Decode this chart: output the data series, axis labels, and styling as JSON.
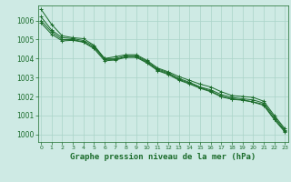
{
  "background_color": "#ceeae4",
  "grid_color": "#aad4c8",
  "line_color": "#1a6b2a",
  "marker_color": "#1a6b2a",
  "xlabel": "Graphe pression niveau de la mer (hPa)",
  "xlabel_fontsize": 6.5,
  "ytick_fontsize": 5.5,
  "xtick_fontsize": 4.5,
  "yticks": [
    1000,
    1001,
    1002,
    1003,
    1004,
    1005,
    1006
  ],
  "xticks": [
    0,
    1,
    2,
    3,
    4,
    5,
    6,
    7,
    8,
    9,
    10,
    11,
    12,
    13,
    14,
    15,
    16,
    17,
    18,
    19,
    20,
    21,
    22,
    23
  ],
  "xlim": [
    -0.3,
    23.3
  ],
  "ylim": [
    999.6,
    1006.8
  ],
  "lines": [
    [
      1006.6,
      1005.8,
      1005.2,
      1005.1,
      1005.05,
      1004.7,
      1004.0,
      1004.1,
      1004.2,
      1004.2,
      1003.9,
      1003.5,
      1003.3,
      1003.05,
      1002.85,
      1002.65,
      1002.5,
      1002.25,
      1002.05,
      1002.0,
      1001.95,
      1001.75,
      1001.0,
      1000.3
    ],
    [
      1006.2,
      1005.5,
      1005.1,
      1005.05,
      1004.95,
      1004.65,
      1004.0,
      1004.0,
      1004.15,
      1004.15,
      1003.85,
      1003.45,
      1003.25,
      1002.95,
      1002.75,
      1002.5,
      1002.35,
      1002.1,
      1001.95,
      1001.88,
      1001.82,
      1001.65,
      1000.92,
      1000.22
    ],
    [
      1006.0,
      1005.4,
      1005.0,
      1005.0,
      1004.88,
      1004.58,
      1003.95,
      1003.95,
      1004.1,
      1004.1,
      1003.8,
      1003.4,
      1003.2,
      1002.9,
      1002.7,
      1002.48,
      1002.28,
      1002.02,
      1001.88,
      1001.82,
      1001.72,
      1001.58,
      1000.82,
      1000.18
    ],
    [
      1005.88,
      1005.28,
      1004.93,
      1004.96,
      1004.86,
      1004.52,
      1003.88,
      1003.92,
      1004.06,
      1004.06,
      1003.76,
      1003.36,
      1003.16,
      1002.86,
      1002.66,
      1002.43,
      1002.25,
      1001.98,
      1001.85,
      1001.8,
      1001.7,
      1001.53,
      1000.78,
      1000.12
    ]
  ]
}
